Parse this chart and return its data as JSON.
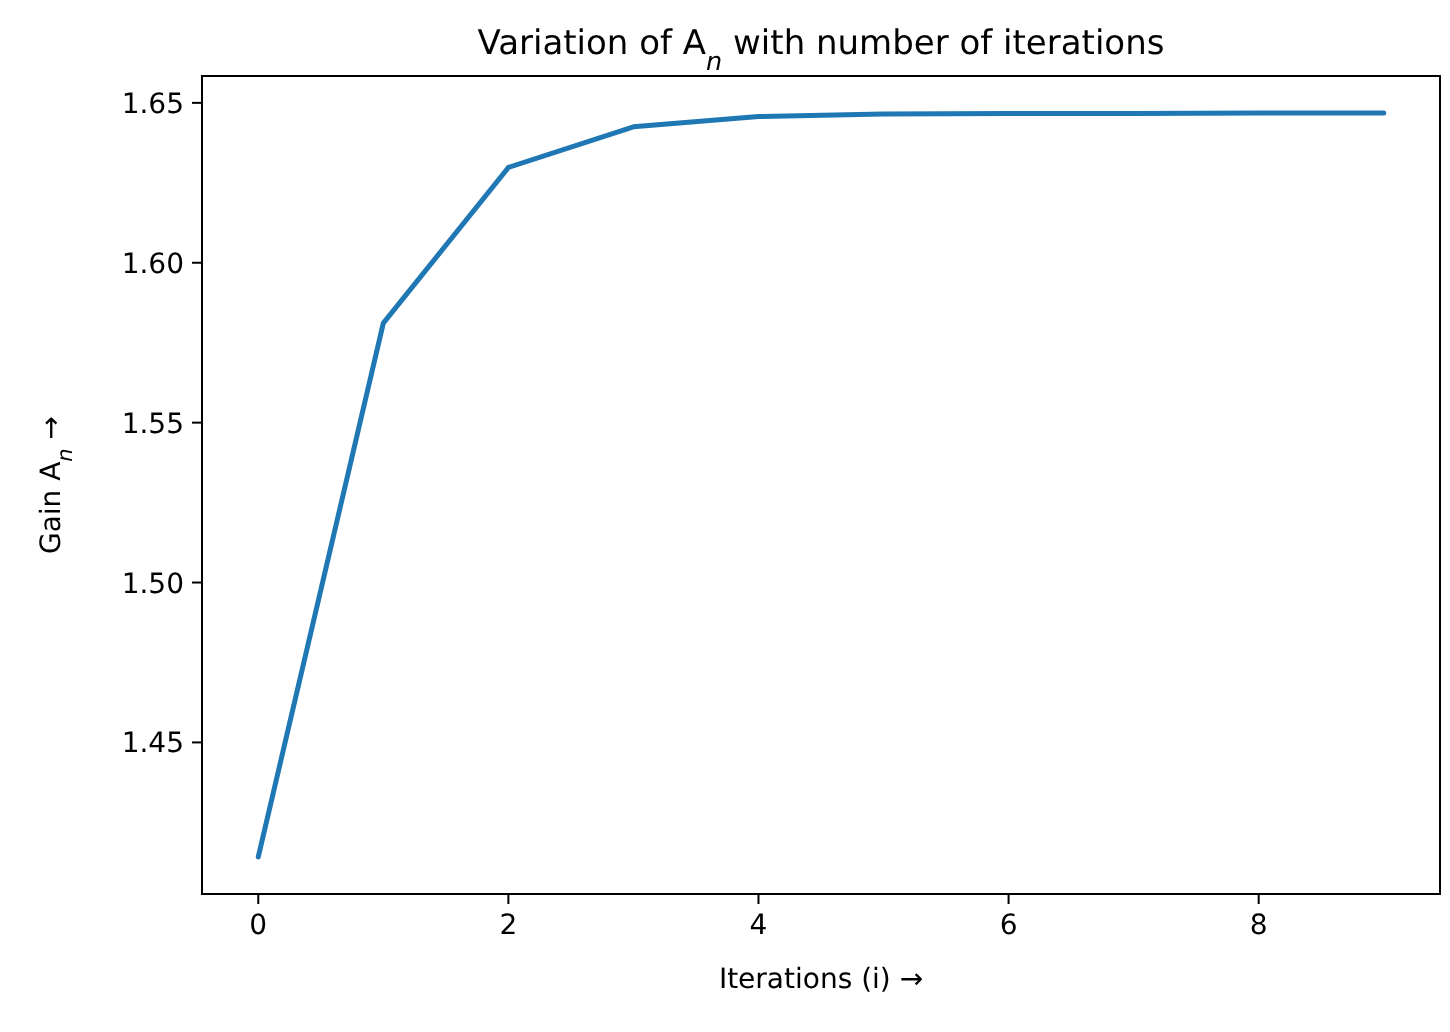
{
  "chart_data": {
    "type": "line",
    "title": "Variation of A$_{n}$ with number of iterations",
    "xlabel": "Iterations (i) →",
    "ylabel": "Gain A$_{n}$ →",
    "x": [
      0,
      1,
      2,
      3,
      4,
      5,
      6,
      7,
      8,
      9
    ],
    "series": [
      {
        "color": "#1f77b4",
        "values": [
          1.4142,
          1.5811,
          1.6298,
          1.6425,
          1.6457,
          1.6465,
          1.6467,
          1.6467,
          1.6468,
          1.6468
        ]
      }
    ],
    "xlim": [
      -0.45,
      9.45
    ],
    "xticks": [
      0,
      2,
      4,
      6,
      8
    ],
    "ylim": [
      1.4026,
      1.6584
    ],
    "yticks": [
      {
        "value": 1.45,
        "label": "1.45"
      },
      {
        "value": 1.5,
        "label": "1.50"
      },
      {
        "value": 1.55,
        "label": "1.55"
      },
      {
        "value": 1.6,
        "label": "1.60"
      },
      {
        "value": 1.65,
        "label": "1.65"
      }
    ],
    "grid": false,
    "marker": "none",
    "line_style": "solid"
  }
}
